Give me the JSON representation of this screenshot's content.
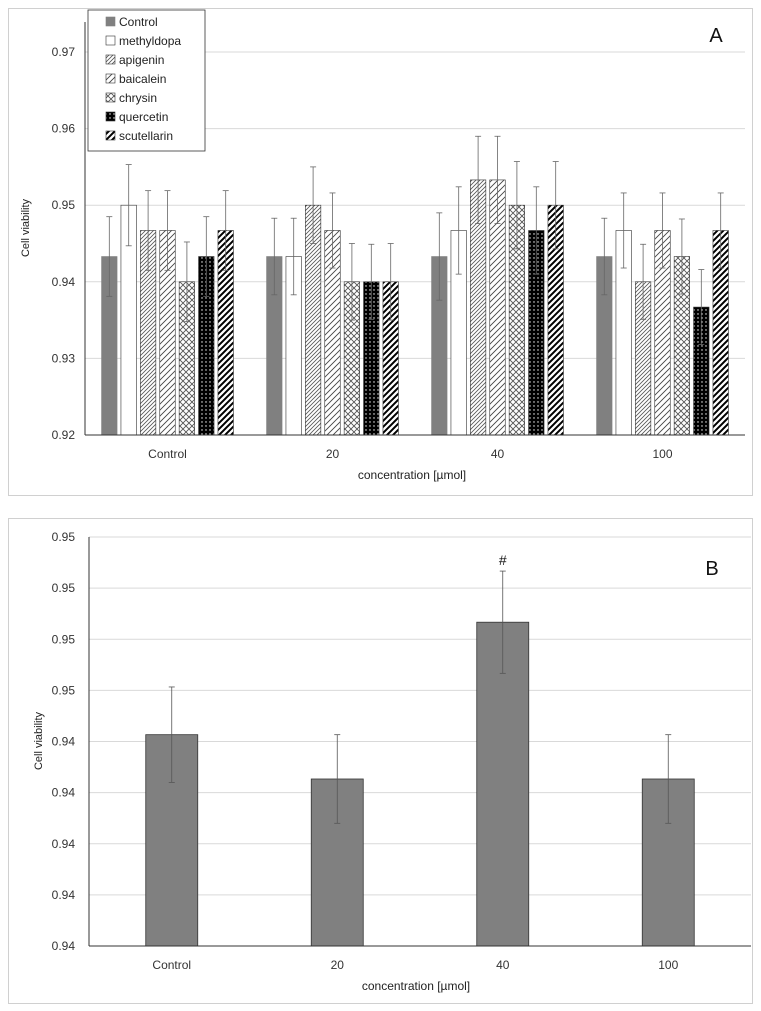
{
  "chart_data": [
    {
      "type": "bar",
      "panel_label": "A",
      "xlabel": "concentration [µmol]",
      "ylabel": "Cell viability",
      "categories": [
        "Control",
        "20",
        "40",
        "100"
      ],
      "ylim": [
        0.92,
        0.97
      ],
      "yticks": [
        "0.92",
        "0.93",
        "0.94",
        "0.95",
        "0.96",
        "0.97"
      ],
      "grid": true,
      "legend_position": "top-left",
      "series": [
        {
          "name": "Control",
          "pattern": "solid-gray",
          "values": [
            0.9433,
            0.9433,
            0.9433,
            0.9433
          ],
          "errors": [
            0.0052,
            0.005,
            0.0057,
            0.005
          ]
        },
        {
          "name": "methyldopa",
          "pattern": "white",
          "values": [
            0.95,
            0.9433,
            0.9467,
            0.9467
          ],
          "errors": [
            0.0053,
            0.005,
            0.0057,
            0.0049
          ]
        },
        {
          "name": "apigenin",
          "pattern": "dense-diag",
          "values": [
            0.9467,
            0.95,
            0.9533,
            0.94
          ],
          "errors": [
            0.0052,
            0.005,
            0.0057,
            0.0049
          ]
        },
        {
          "name": "baicalein",
          "pattern": "sparse-diag",
          "values": [
            0.9467,
            0.9467,
            0.9533,
            0.9467
          ],
          "errors": [
            0.0052,
            0.0049,
            0.0057,
            0.0049
          ]
        },
        {
          "name": "chrysin",
          "pattern": "checker",
          "values": [
            0.94,
            0.94,
            0.95,
            0.9433
          ],
          "errors": [
            0.0052,
            0.005,
            0.0057,
            0.0049
          ]
        },
        {
          "name": "quercetin",
          "pattern": "black-dots",
          "values": [
            0.9433,
            0.94,
            0.9467,
            0.9367
          ],
          "errors": [
            0.0052,
            0.0049,
            0.0057,
            0.0049
          ]
        },
        {
          "name": "scutellarin",
          "pattern": "wide-diag",
          "values": [
            0.9467,
            0.94,
            0.95,
            0.9467
          ],
          "errors": [
            0.0052,
            0.005,
            0.0057,
            0.0049
          ]
        }
      ],
      "colors": {
        "control": "#808080",
        "quercetin": "#000000",
        "gridline": "#d9d9d9"
      }
    },
    {
      "type": "bar",
      "panel_label": "B",
      "xlabel": "concentration [µmol]",
      "ylabel": "Cell viability",
      "categories": [
        "Control",
        "20",
        "40",
        "100"
      ],
      "ylim": [
        0.938,
        0.95
      ],
      "yticks": [
        "0.94",
        "0.94",
        "0.94",
        "0.94",
        "0.94",
        "0.95",
        "0.95",
        "0.95",
        "0.95"
      ],
      "grid": true,
      "series": [
        {
          "name": "",
          "values": [
            0.9442,
            0.9429,
            0.9475,
            0.9429
          ],
          "errors": [
            0.0014,
            0.0013,
            0.0015,
            0.0013
          ]
        }
      ],
      "annotations": [
        {
          "category": "40",
          "text": "#"
        }
      ],
      "colors": {
        "bar": "#808080",
        "gridline": "#d9d9d9"
      }
    }
  ]
}
